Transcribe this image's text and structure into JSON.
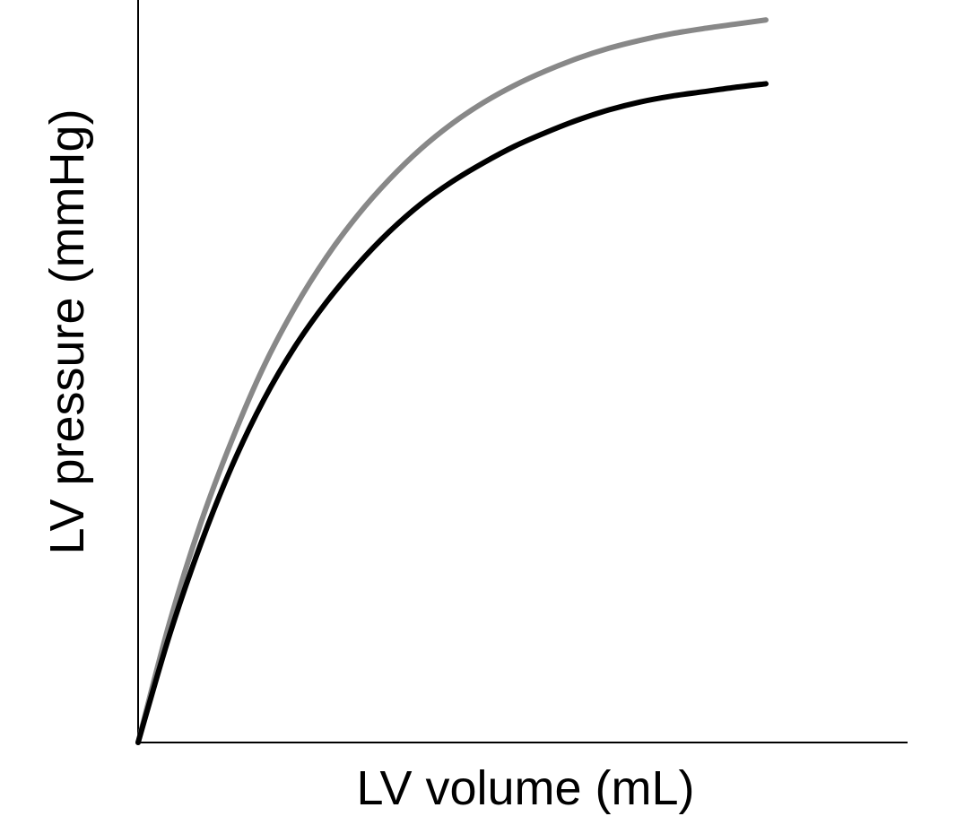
{
  "chart_data": {
    "type": "line",
    "title": "",
    "xlabel": "LV volume (mL)",
    "ylabel": "LV pressure (mmHg)",
    "xlim": [
      0,
      100
    ],
    "ylim": [
      0,
      100
    ],
    "grid": false,
    "axis_ticks": false,
    "series": [
      {
        "name": "gray curve",
        "color": "#888888",
        "x": [
          0,
          5,
          10,
          15,
          20,
          25,
          30,
          35,
          40,
          45,
          50,
          55,
          60,
          65,
          70,
          75,
          80,
          85,
          90,
          95,
          100
        ],
        "y": [
          0,
          16.5,
          30.3,
          41.8,
          51.8,
          60.0,
          66.9,
          72.7,
          77.6,
          81.8,
          85.3,
          88.2,
          90.6,
          92.6,
          94.3,
          95.7,
          96.8,
          97.7,
          98.4,
          99.0,
          99.6
        ]
      },
      {
        "name": "black curve",
        "color": "#000000",
        "x": [
          0,
          5,
          10,
          15,
          20,
          25,
          30,
          35,
          40,
          45,
          50,
          55,
          60,
          65,
          70,
          75,
          80,
          85,
          90,
          95,
          100
        ],
        "y": [
          0,
          14.8,
          27.4,
          38.2,
          47.2,
          54.6,
          60.7,
          65.9,
          70.4,
          74.2,
          77.3,
          79.9,
          82.2,
          84.1,
          85.8,
          87.2,
          88.3,
          89.1,
          89.7,
          90.3,
          90.8
        ]
      }
    ]
  }
}
